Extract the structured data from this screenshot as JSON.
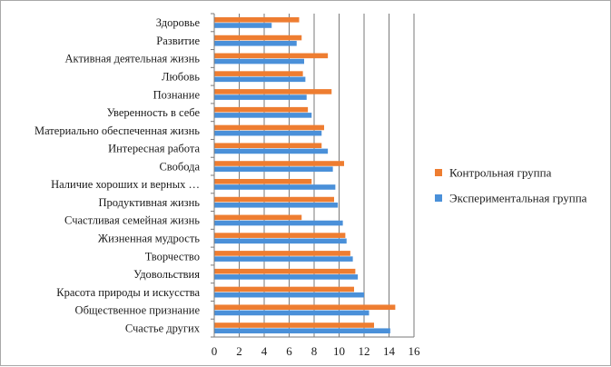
{
  "chart_data": {
    "type": "bar",
    "orientation": "horizontal",
    "categories": [
      "Здоровье",
      "Развитие",
      "Активная деятельная жизнь",
      "Любовь",
      "Познание",
      "Уверенность в себе",
      "Материально обеспеченная жизнь",
      "Интересная работа",
      "Свобода",
      "Наличие хороших и верных …",
      "Продуктивная жизнь",
      "Счастливая семейная жизнь",
      "Жизненная мудрость",
      "Творчество",
      "Удовольствия",
      "Красота природы и искусства",
      "Общественное признание",
      "Счастье других"
    ],
    "series": [
      {
        "name": "Контрольная группа",
        "color": "#ee7d31",
        "values": [
          6.8,
          7.0,
          9.1,
          7.1,
          9.4,
          7.5,
          8.8,
          8.6,
          10.4,
          7.8,
          9.6,
          7.0,
          10.5,
          10.9,
          11.3,
          11.2,
          14.5,
          12.8
        ]
      },
      {
        "name": "Экспериментальная группа",
        "color": "#4a90d9",
        "values": [
          4.6,
          6.6,
          7.2,
          7.3,
          7.4,
          7.8,
          8.6,
          9.1,
          9.5,
          9.7,
          9.9,
          10.3,
          10.6,
          11.1,
          11.5,
          12.0,
          12.4,
          14.1
        ]
      }
    ],
    "x_ticks": [
      "0",
      "2",
      "4",
      "6",
      "8",
      "10",
      "12",
      "14",
      "16"
    ],
    "xlim": [
      0,
      16
    ],
    "title": "",
    "xlabel": "",
    "ylabel": "",
    "grid": "vertical",
    "legend_position": "right"
  }
}
